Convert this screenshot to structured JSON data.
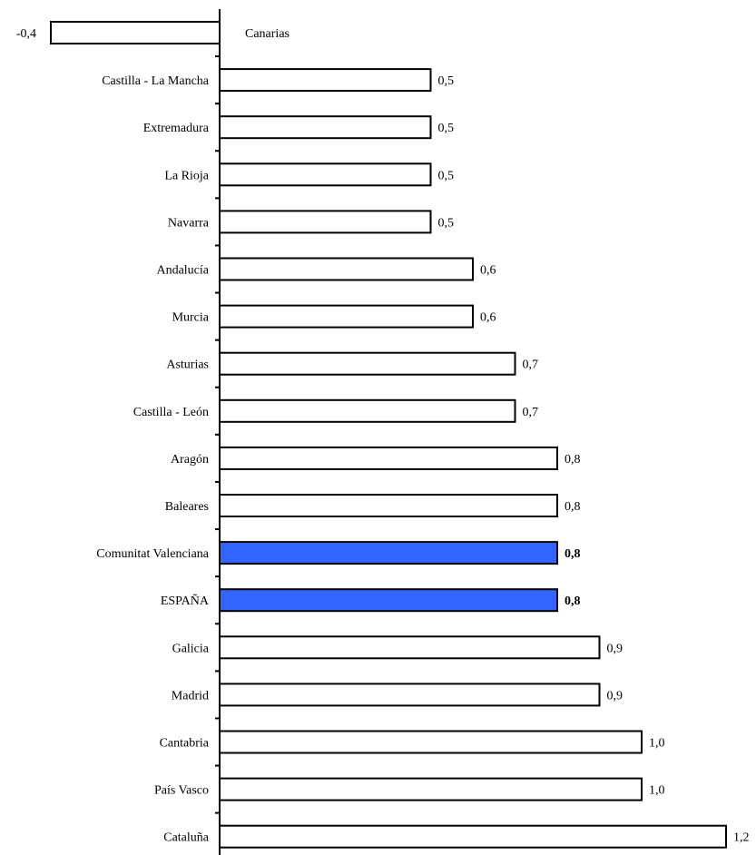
{
  "chart_data": {
    "type": "bar",
    "orientation": "horizontal",
    "categories": [
      "Canarias",
      "Castilla - La Mancha",
      "Extremadura",
      "La Rioja",
      "Navarra",
      "Andalucía",
      "Murcia",
      "Asturias",
      "Castilla - León",
      "Aragón",
      "Baleares",
      "Comunitat Valenciana",
      "ESPAÑA",
      "Galicia",
      "Madrid",
      "Cantabria",
      "País Vasco",
      "Cataluña"
    ],
    "values": [
      -0.4,
      0.5,
      0.5,
      0.5,
      0.5,
      0.6,
      0.6,
      0.7,
      0.7,
      0.8,
      0.8,
      0.8,
      0.8,
      0.9,
      0.9,
      1.0,
      1.0,
      1.2
    ],
    "value_labels": [
      "-0,4",
      "0,5",
      "0,5",
      "0,5",
      "0,5",
      "0,6",
      "0,6",
      "0,7",
      "0,7",
      "0,8",
      "0,8",
      "0,8",
      "0,8",
      "0,9",
      "0,9",
      "1,0",
      "1,0",
      "1,2"
    ],
    "highlighted": [
      "Comunitat Valenciana",
      "ESPAÑA"
    ],
    "colors": {
      "default_fill": "#ffffff",
      "highlight_fill": "#3366ff",
      "stroke": "#000000"
    },
    "title": "",
    "xlabel": "",
    "ylabel": "",
    "xlim": [
      -0.4,
      1.2
    ],
    "grid": false,
    "legend": "none"
  }
}
